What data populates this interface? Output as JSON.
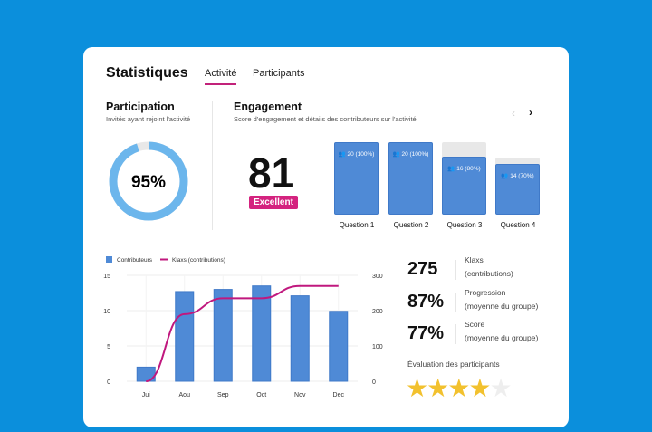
{
  "header": {
    "title": "Statistiques",
    "tabs": [
      {
        "label": "Activité",
        "active": true
      },
      {
        "label": "Participants",
        "active": false
      }
    ]
  },
  "participation": {
    "title": "Participation",
    "subtitle": "Invités ayant rejoint l'activité",
    "value_label": "95%",
    "percent": 95
  },
  "engagement": {
    "title": "Engagement",
    "subtitle": "Score d'engagement et détails des contributeurs sur l'activité",
    "score": "81",
    "badge": "Excellent",
    "questions": [
      {
        "label": "Question 1",
        "value": "20 (100%)",
        "percent": 100
      },
      {
        "label": "Question 2",
        "value": "20 (100%)",
        "percent": 100
      },
      {
        "label": "Question 3",
        "value": "16 (80%)",
        "percent": 80
      },
      {
        "label": "Question 4",
        "value": "14 (70%)",
        "percent": 70
      }
    ],
    "prev_icon": "chevron-left",
    "next_icon": "chevron-right"
  },
  "stats": [
    {
      "value": "275",
      "label1": "Klaxs",
      "label2": "(contributions)"
    },
    {
      "value": "87%",
      "label1": "Progression",
      "label2": "(moyenne du groupe)"
    },
    {
      "value": "77%",
      "label1": "Score",
      "label2": "(moyenne du groupe)"
    }
  ],
  "rating": {
    "label": "Évaluation des participants",
    "stars": 4,
    "max": 5
  },
  "colors": {
    "accent": "#d4237f",
    "bar": "#4f8ad6",
    "line": "#c0187e",
    "star": "#f2c12e",
    "donut": "#6cb6ec"
  },
  "chart_data": {
    "type": "bar",
    "categories": [
      "Jui",
      "Aou",
      "Sep",
      "Oct",
      "Nov",
      "Dec"
    ],
    "series": [
      {
        "name": "Contributeurs",
        "type": "bar",
        "axis": "left",
        "values": [
          2,
          12.7,
          13,
          13.5,
          12.1,
          9.9
        ]
      },
      {
        "name": "Klaxs (contributions)",
        "type": "line",
        "axis": "right",
        "values": [
          0,
          190,
          235,
          235,
          270,
          270
        ]
      }
    ],
    "ylim_left": [
      0,
      15
    ],
    "ylim_right": [
      0,
      300
    ],
    "yticks_left": [
      "0",
      "5",
      "10",
      "15"
    ],
    "yticks_right": [
      "0",
      "100",
      "200",
      "300"
    ],
    "legend": "top-left",
    "grid": true
  }
}
